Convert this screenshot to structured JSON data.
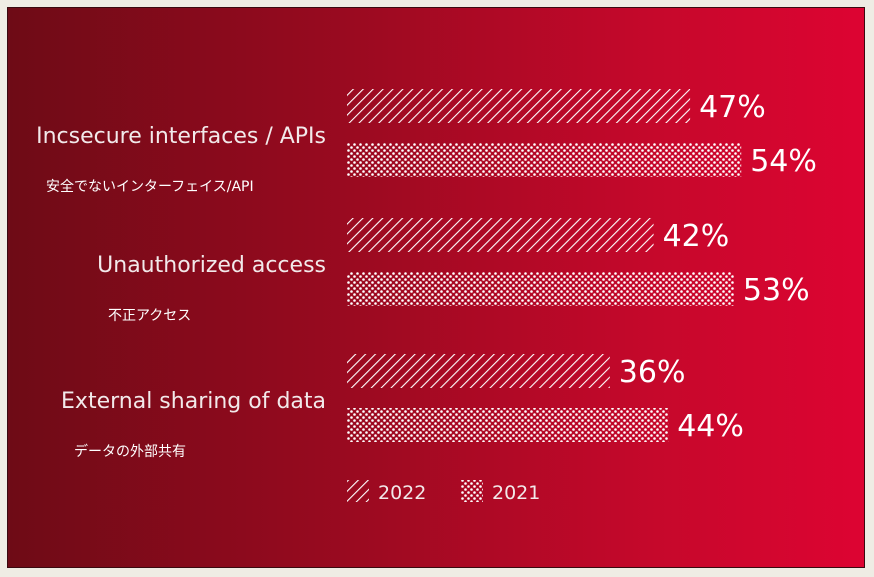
{
  "chart_data": {
    "type": "bar",
    "orientation": "horizontal",
    "categories": [
      "Incsecure interfaces / APIs",
      "Unauthorized access",
      "External sharing of data"
    ],
    "categories_jp": [
      "安全でないインターフェイス/API",
      "不正アクセス",
      "データの外部共有"
    ],
    "series": [
      {
        "name": "2022",
        "values": [
          47,
          42,
          36
        ],
        "labels": [
          "47%",
          "42%",
          "36%"
        ],
        "pattern": "diagonal-hatch"
      },
      {
        "name": "2021",
        "values": [
          54,
          53,
          44
        ],
        "labels": [
          "54%",
          "53%",
          "44%"
        ],
        "pattern": "dots"
      }
    ],
    "xlim": [
      0,
      100
    ],
    "grid": false,
    "legend_position": "bottom"
  },
  "colors": {
    "background_left": "#6e0b16",
    "background_right": "#dd0432",
    "bar": "#ffffff",
    "text": "#ffffff"
  }
}
